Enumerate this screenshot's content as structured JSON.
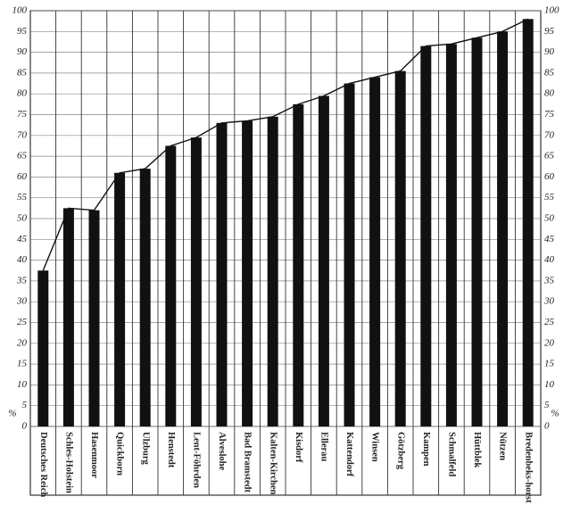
{
  "chart_data": {
    "type": "bar",
    "categories": [
      "Deutsches Reich",
      "Schles-Holstein",
      "Hasenmoor",
      "Quickborn",
      "Ulzburg",
      "Henstedt",
      "Lent-Föhrden",
      "Alveslohe",
      "Bad Bramstedt",
      "Kalten-Kirchen",
      "Kisdorf",
      "Ellerau",
      "Kattendorf",
      "Winsen",
      "Götzberg",
      "Kampen",
      "Schmalfeld",
      "Hüttblek",
      "Nützen",
      "Bredenbeks-horst"
    ],
    "values": [
      37.5,
      52.5,
      52,
      61,
      62,
      67.5,
      69.5,
      73,
      73.5,
      74.5,
      77.5,
      79.5,
      82.5,
      84,
      85.5,
      91.5,
      92,
      93.5,
      95,
      98
    ],
    "color": "#111111",
    "line": true,
    "y_unit": "%",
    "ylim": [
      0,
      100
    ],
    "yticks": [
      0,
      5,
      10,
      15,
      20,
      25,
      30,
      35,
      40,
      45,
      50,
      55,
      60,
      65,
      70,
      75,
      80,
      85,
      90,
      95,
      100
    ],
    "grid": true
  }
}
